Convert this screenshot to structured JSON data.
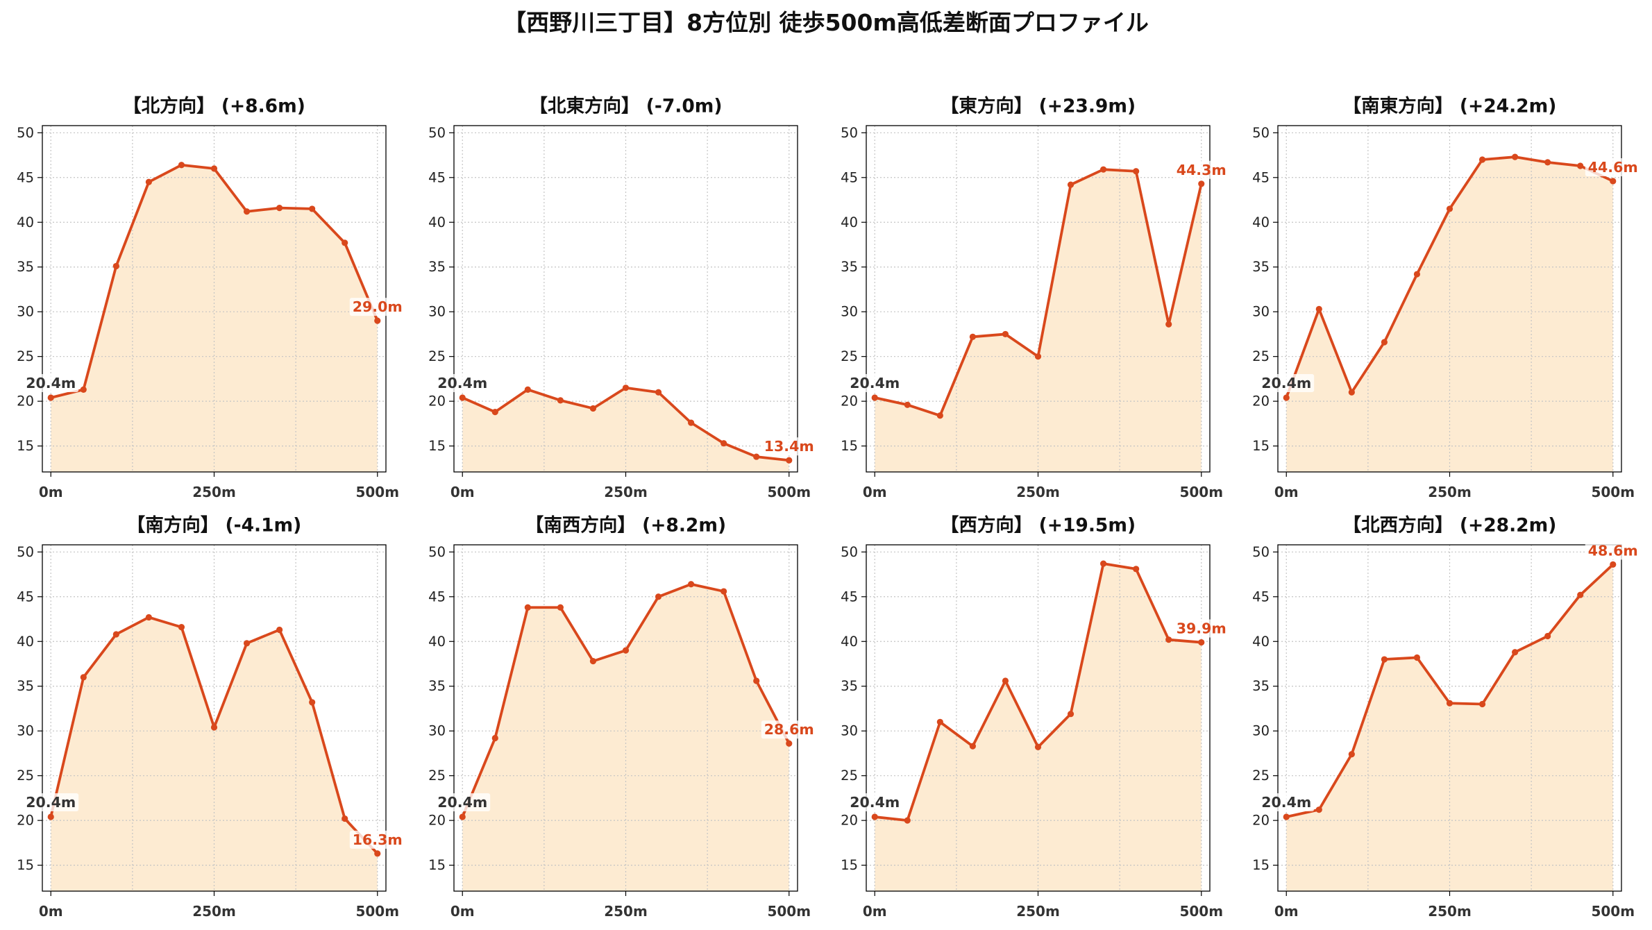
{
  "title": "【西野川三丁目】8方位別 徒歩500m高低差断面プロファイル",
  "colors": {
    "line": "#d9481c",
    "fill": "#fdebd2",
    "grid": "#c4c4c4",
    "start_label": "#333333",
    "end_label": "#d9481c"
  },
  "chart_data": [
    {
      "type": "area",
      "title": "【北方向】 (+8.6m)",
      "x": [
        0,
        50,
        100,
        150,
        200,
        250,
        300,
        350,
        400,
        450,
        500
      ],
      "y": [
        20.4,
        21.3,
        35.1,
        44.5,
        46.4,
        46.0,
        41.2,
        41.6,
        41.5,
        37.7,
        29.0
      ],
      "xlim": [
        -13,
        513
      ],
      "ylim": [
        12.1,
        50.8
      ],
      "xticks": [
        0,
        250,
        500
      ],
      "xtick_labels": [
        "0m",
        "250m",
        "500m"
      ],
      "minor_xticks": [
        125,
        375
      ],
      "yticks": [
        15,
        20,
        25,
        30,
        35,
        40,
        45,
        50
      ],
      "grid": true,
      "start_label": "20.4m",
      "end_label": "29.0m"
    },
    {
      "type": "area",
      "title": "【北東方向】 (-7.0m)",
      "x": [
        0,
        50,
        100,
        150,
        200,
        250,
        300,
        350,
        400,
        450,
        500
      ],
      "y": [
        20.4,
        18.8,
        21.3,
        20.1,
        19.2,
        21.5,
        21.0,
        17.6,
        15.3,
        13.8,
        13.4
      ],
      "xlim": [
        -13,
        513
      ],
      "ylim": [
        12.1,
        50.8
      ],
      "xticks": [
        0,
        250,
        500
      ],
      "xtick_labels": [
        "0m",
        "250m",
        "500m"
      ],
      "minor_xticks": [
        125,
        375
      ],
      "yticks": [
        15,
        20,
        25,
        30,
        35,
        40,
        45,
        50
      ],
      "grid": true,
      "start_label": "20.4m",
      "end_label": "13.4m"
    },
    {
      "type": "area",
      "title": "【東方向】 (+23.9m)",
      "x": [
        0,
        50,
        100,
        150,
        200,
        250,
        300,
        350,
        400,
        450,
        500
      ],
      "y": [
        20.4,
        19.6,
        18.4,
        27.2,
        27.5,
        25.0,
        44.2,
        45.9,
        45.7,
        28.6,
        44.3
      ],
      "xlim": [
        -13,
        513
      ],
      "ylim": [
        12.1,
        50.8
      ],
      "xticks": [
        0,
        250,
        500
      ],
      "xtick_labels": [
        "0m",
        "250m",
        "500m"
      ],
      "minor_xticks": [
        125,
        375
      ],
      "yticks": [
        15,
        20,
        25,
        30,
        35,
        40,
        45,
        50
      ],
      "grid": true,
      "start_label": "20.4m",
      "end_label": "44.3m"
    },
    {
      "type": "area",
      "title": "【南東方向】 (+24.2m)",
      "x": [
        0,
        50,
        100,
        150,
        200,
        250,
        300,
        350,
        400,
        450,
        500
      ],
      "y": [
        20.4,
        30.3,
        21.0,
        26.6,
        34.2,
        41.5,
        47.0,
        47.3,
        46.7,
        46.3,
        44.6
      ],
      "xlim": [
        -13,
        513
      ],
      "ylim": [
        12.1,
        50.8
      ],
      "xticks": [
        0,
        250,
        500
      ],
      "xtick_labels": [
        "0m",
        "250m",
        "500m"
      ],
      "minor_xticks": [
        125,
        375
      ],
      "yticks": [
        15,
        20,
        25,
        30,
        35,
        40,
        45,
        50
      ],
      "grid": true,
      "start_label": "20.4m",
      "end_label": "44.6m"
    },
    {
      "type": "area",
      "title": "【南方向】 (-4.1m)",
      "x": [
        0,
        50,
        100,
        150,
        200,
        250,
        300,
        350,
        400,
        450,
        500
      ],
      "y": [
        20.4,
        36.0,
        40.8,
        42.7,
        41.6,
        30.4,
        39.8,
        41.3,
        33.2,
        20.2,
        16.3
      ],
      "xlim": [
        -13,
        513
      ],
      "ylim": [
        12.1,
        50.8
      ],
      "xticks": [
        0,
        250,
        500
      ],
      "xtick_labels": [
        "0m",
        "250m",
        "500m"
      ],
      "minor_xticks": [
        125,
        375
      ],
      "yticks": [
        15,
        20,
        25,
        30,
        35,
        40,
        45,
        50
      ],
      "grid": true,
      "start_label": "20.4m",
      "end_label": "16.3m"
    },
    {
      "type": "area",
      "title": "【南西方向】 (+8.2m)",
      "x": [
        0,
        50,
        100,
        150,
        200,
        250,
        300,
        350,
        400,
        450,
        500
      ],
      "y": [
        20.4,
        29.2,
        43.8,
        43.8,
        37.8,
        39.0,
        45.0,
        46.4,
        45.6,
        35.6,
        28.6
      ],
      "xlim": [
        -13,
        513
      ],
      "ylim": [
        12.1,
        50.8
      ],
      "xticks": [
        0,
        250,
        500
      ],
      "xtick_labels": [
        "0m",
        "250m",
        "500m"
      ],
      "minor_xticks": [
        125,
        375
      ],
      "yticks": [
        15,
        20,
        25,
        30,
        35,
        40,
        45,
        50
      ],
      "grid": true,
      "start_label": "20.4m",
      "end_label": "28.6m"
    },
    {
      "type": "area",
      "title": "【西方向】 (+19.5m)",
      "x": [
        0,
        50,
        100,
        150,
        200,
        250,
        300,
        350,
        400,
        450,
        500
      ],
      "y": [
        20.4,
        20.0,
        31.0,
        28.3,
        35.6,
        28.2,
        31.9,
        48.7,
        48.1,
        40.2,
        39.9
      ],
      "xlim": [
        -13,
        513
      ],
      "ylim": [
        12.1,
        50.8
      ],
      "xticks": [
        0,
        250,
        500
      ],
      "xtick_labels": [
        "0m",
        "250m",
        "500m"
      ],
      "minor_xticks": [
        125,
        375
      ],
      "yticks": [
        15,
        20,
        25,
        30,
        35,
        40,
        45,
        50
      ],
      "grid": true,
      "start_label": "20.4m",
      "end_label": "39.9m"
    },
    {
      "type": "area",
      "title": "【北西方向】 (+28.2m)",
      "x": [
        0,
        50,
        100,
        150,
        200,
        250,
        300,
        350,
        400,
        450,
        500
      ],
      "y": [
        20.4,
        21.2,
        27.4,
        38.0,
        38.2,
        33.1,
        33.0,
        38.8,
        40.6,
        45.2,
        48.6
      ],
      "xlim": [
        -13,
        513
      ],
      "ylim": [
        12.1,
        50.8
      ],
      "xticks": [
        0,
        250,
        500
      ],
      "xtick_labels": [
        "0m",
        "250m",
        "500m"
      ],
      "minor_xticks": [
        125,
        375
      ],
      "yticks": [
        15,
        20,
        25,
        30,
        35,
        40,
        45,
        50
      ],
      "grid": true,
      "start_label": "20.4m",
      "end_label": "48.6m"
    }
  ]
}
